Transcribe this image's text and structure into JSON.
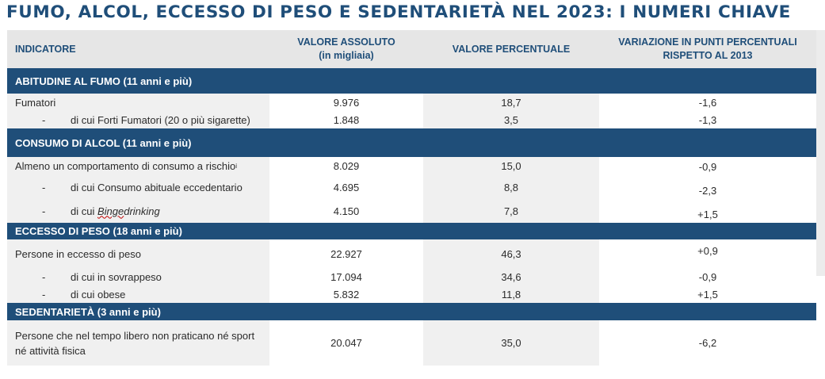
{
  "title": "FUMO, ALCOL, ECCESSO DI PESO E SEDENTARIETÀ NEL 2023: I NUMERI CHIAVE",
  "headers": {
    "indicator": "INDICATORE",
    "absolute_line1": "VALORE ASSOLUTO",
    "absolute_line2": "(in migliaia)",
    "percent": "VALORE PERCENTUALE",
    "variation_line1": "VARIAZIONE IN PUNTI PERCENTUALI",
    "variation_line2": "RISPETTO AL 2013"
  },
  "sections": [
    {
      "title": "ABITUDINE AL FUMO (11 anni e più)",
      "rows": [
        {
          "label": "Fumatori",
          "absolute": "9.976",
          "percent": "18,7",
          "variation": "-1,6"
        },
        {
          "dash": "-",
          "label": "di cui Forti Fumatori (20 o più sigarette)",
          "absolute": "1.848",
          "percent": "3,5",
          "variation": "-1,3"
        }
      ]
    },
    {
      "title": "CONSUMO DI ALCOL (11 anni e più)",
      "rows": [
        {
          "label": "Almeno un comportamento di consumo a rischio",
          "footnote": "i",
          "absolute": "8.029",
          "percent": "15,0",
          "variation": "-0,9"
        },
        {
          "dash": "-",
          "label": "di cui Consumo abituale eccedentario",
          "absolute": "4.695",
          "percent": "8,8",
          "variation": "-2,3"
        },
        {
          "dash": "-",
          "label_prefix": "di cui ",
          "label_word1": "Binge",
          "label_word2": " drinking",
          "absolute": "4.150",
          "percent": "7,8",
          "variation": "+1,5"
        }
      ]
    },
    {
      "title": "ECCESSO DI PESO (18 anni e più)",
      "rows": [
        {
          "label": "Persone in eccesso di peso",
          "absolute": "22.927",
          "percent": "46,3",
          "variation": "+0,9"
        },
        {
          "dash": "-",
          "label": "di cui in sovrappeso",
          "absolute": "17.094",
          "percent": "34,6",
          "variation": "-0,9"
        },
        {
          "dash": "-",
          "label": "di cui obese",
          "absolute": "5.832",
          "percent": "11,8",
          "variation": "+1,5"
        }
      ]
    },
    {
      "title": "SEDENTARIETÀ (3 anni e più)",
      "rows": [
        {
          "label_line1": "Persone che nel tempo libero non praticano né sport",
          "label_line2": "né attività fisica",
          "absolute": "20.047",
          "percent": "35,0",
          "variation": "-6,2"
        }
      ]
    }
  ],
  "colors": {
    "brand": "#1f4e79",
    "header_bg": "#e6e6e6",
    "cell_gray": "#f0f0f0"
  }
}
